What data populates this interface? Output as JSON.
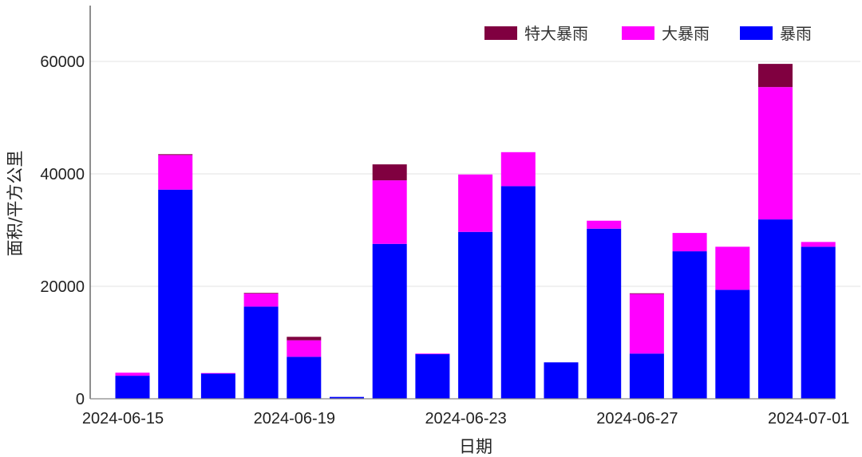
{
  "chart_data": {
    "type": "bar",
    "stacked": true,
    "title": "",
    "xlabel": "日期",
    "ylabel": "面积/平方公里",
    "ylim": [
      0,
      70000
    ],
    "yticks": [
      0,
      20000,
      40000,
      60000
    ],
    "xtick_labels": [
      "2024-06-15",
      "2024-06-19",
      "2024-06-23",
      "2024-06-27",
      "2024-07-01"
    ],
    "grid": true,
    "legend_position": "top-right",
    "categories": [
      "2024-06-15",
      "2024-06-16",
      "2024-06-17",
      "2024-06-18",
      "2024-06-19",
      "2024-06-20",
      "2024-06-21",
      "2024-06-22",
      "2024-06-23",
      "2024-06-24",
      "2024-06-25",
      "2024-06-26",
      "2024-06-27",
      "2024-06-28",
      "2024-06-29",
      "2024-06-30",
      "2024-07-01"
    ],
    "series": [
      {
        "name": "暴雨",
        "color": "#0000ff",
        "values": [
          4100,
          37200,
          4480,
          16400,
          7470,
          330,
          27550,
          7990,
          29680,
          37820,
          6480,
          30250,
          8040,
          26230,
          19380,
          31900,
          27040
        ]
      },
      {
        "name": "大暴雨",
        "color": "#ff00ff",
        "values": [
          540,
          6150,
          100,
          2350,
          2930,
          0,
          11300,
          50,
          10210,
          6040,
          0,
          1420,
          10620,
          3260,
          7660,
          23540,
          850
        ]
      },
      {
        "name": "特大暴雨",
        "color": "#800040",
        "values": [
          0,
          150,
          0,
          70,
          620,
          0,
          2840,
          0,
          0,
          0,
          0,
          0,
          100,
          0,
          0,
          4120,
          0
        ]
      }
    ],
    "legend_order": [
      "特大暴雨",
      "大暴雨",
      "暴雨"
    ]
  }
}
